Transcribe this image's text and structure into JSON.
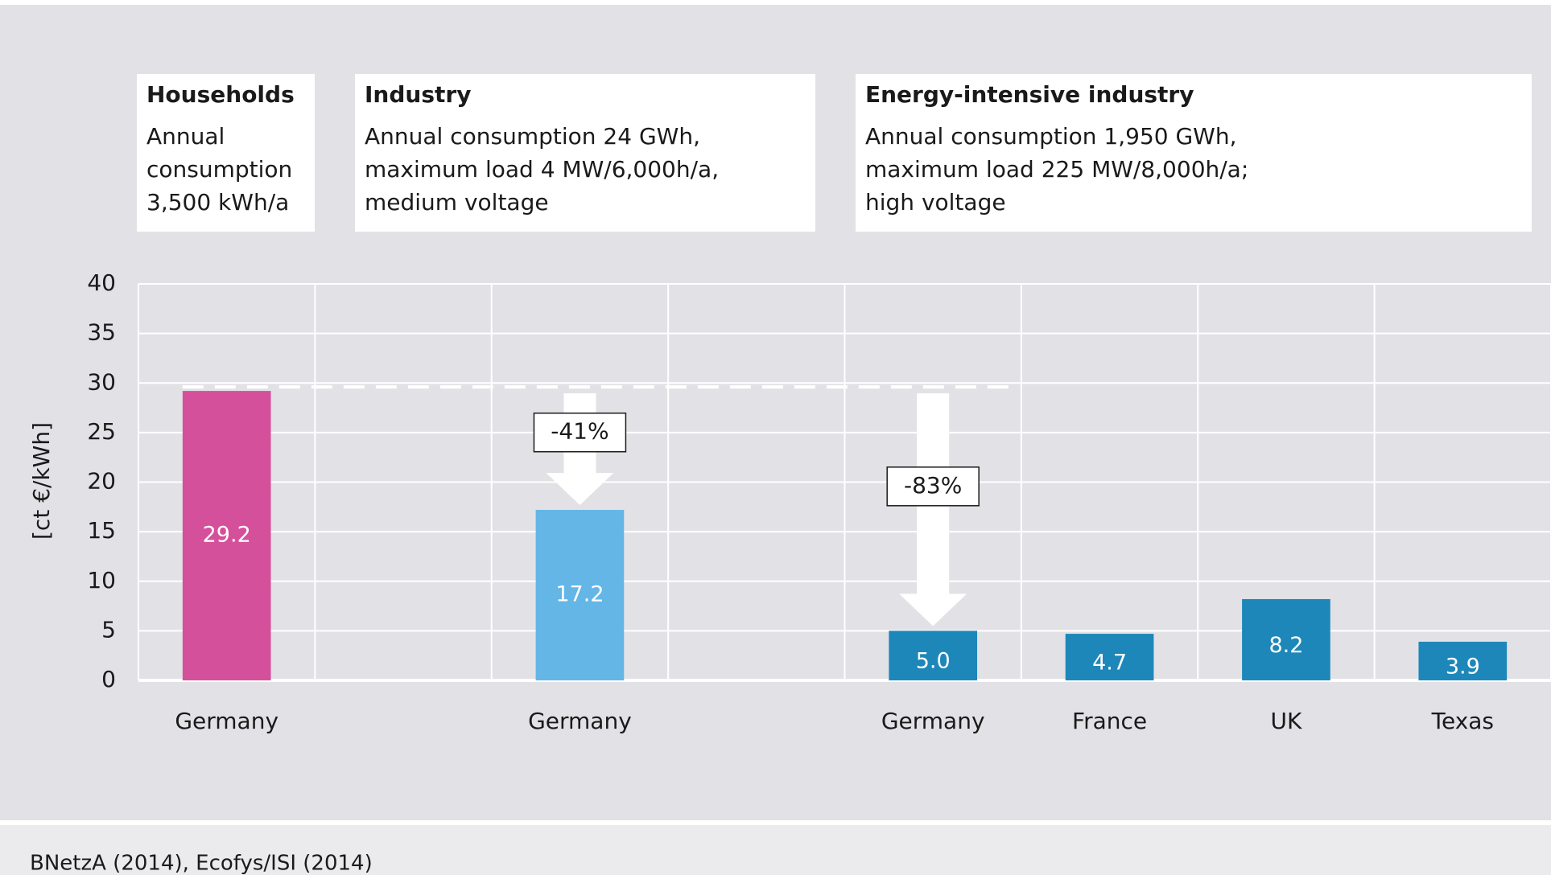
{
  "chart_data": {
    "type": "bar",
    "groups": [
      {
        "title": "Households",
        "lines": [
          "Annual",
          "consumption",
          "3,500 kWh/a"
        ]
      },
      {
        "title": "Industry",
        "lines": [
          "Annual consumption 24 GWh,",
          "maximum load 4 MW/6,000h/a,",
          "medium voltage"
        ]
      },
      {
        "title": "Energy-intensive industry",
        "lines": [
          "Annual consumption 1,950 GWh,",
          "maximum load 225 MW/8,000h/a;",
          "high voltage"
        ]
      }
    ],
    "y_label": "[ct €/kWh]",
    "categories": [
      "Germany",
      null,
      "Germany",
      null,
      "Germany",
      "France",
      "UK",
      "Texas"
    ],
    "values": [
      29.2,
      null,
      17.2,
      null,
      5.0,
      4.7,
      8.2,
      3.9
    ],
    "value_labels": [
      "29.2",
      null,
      "17.2",
      null,
      "5.0",
      "4.7",
      "8.2",
      "3.9"
    ],
    "colors": [
      "#d5509a",
      null,
      "#63b6e6",
      null,
      "#1e87b9",
      "#1e87b9",
      "#1e87b9",
      "#1e87b9"
    ],
    "annotations": [
      "-41%",
      "-83%"
    ],
    "ylim": [
      0,
      40
    ],
    "yticks": [
      0,
      5,
      10,
      15,
      20,
      25,
      30,
      35,
      40
    ],
    "grid": true,
    "source": "BNetzA (2014), Ecofys/ISI (2014)"
  }
}
